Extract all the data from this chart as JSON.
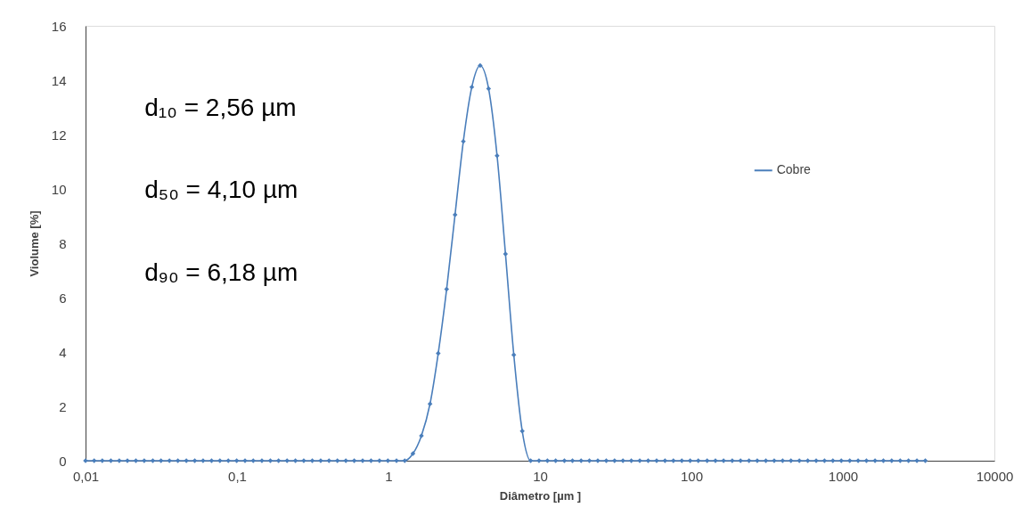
{
  "chart_data": {
    "type": "line",
    "xlabel": "Diâmetro [µm ]",
    "ylabel": "Violume  [%]",
    "x": [
      0.01,
      0.0114,
      0.0129,
      0.0147,
      0.0167,
      0.0189,
      0.0215,
      0.0244,
      0.0278,
      0.0315,
      0.0358,
      0.0407,
      0.0463,
      0.0526,
      0.0597,
      0.0679,
      0.0771,
      0.0876,
      0.0995,
      0.113,
      0.128,
      0.146,
      0.166,
      0.188,
      0.214,
      0.243,
      0.276,
      0.314,
      0.357,
      0.405,
      0.46,
      0.523,
      0.594,
      0.675,
      0.767,
      0.872,
      0.991,
      1.13,
      1.28,
      1.45,
      1.65,
      1.88,
      2.13,
      2.42,
      2.75,
      3.12,
      3.55,
      4.03,
      4.58,
      5.21,
      5.92,
      6.72,
      7.64,
      8.68,
      9.86,
      11.2,
      12.7,
      14.5,
      16.4,
      18.7,
      21.2,
      24.1,
      27.4,
      31.1,
      35.3,
      40.1,
      45.6,
      51.8,
      58.9,
      66.9,
      76,
      86.4,
      98.1,
      111,
      127,
      144,
      163,
      186,
      211,
      240,
      272,
      310,
      352,
      400,
      454,
      516,
      586,
      666,
      756,
      859,
      976,
      1110,
      1260,
      1430,
      1630,
      1850,
      2100,
      2390,
      2710,
      3080,
      3500
    ],
    "series": [
      {
        "name": "Cobre",
        "color": "#4a7ebb",
        "values": [
          0,
          0,
          0,
          0,
          0,
          0,
          0,
          0,
          0,
          0,
          0,
          0,
          0,
          0,
          0,
          0,
          0,
          0,
          0,
          0,
          0,
          0,
          0,
          0,
          0,
          0,
          0,
          0,
          0,
          0,
          0,
          0,
          0,
          0,
          0,
          0,
          0,
          0,
          0,
          0.26,
          0.92,
          2.09,
          3.95,
          6.31,
          9.05,
          11.75,
          13.75,
          14.54,
          13.69,
          11.22,
          7.61,
          3.89,
          1.09,
          0,
          0,
          0,
          0,
          0,
          0,
          0,
          0,
          0,
          0,
          0,
          0,
          0,
          0,
          0,
          0,
          0,
          0,
          0,
          0,
          0,
          0,
          0,
          0,
          0,
          0,
          0,
          0,
          0,
          0,
          0,
          0,
          0,
          0,
          0,
          0,
          0,
          0,
          0,
          0,
          0,
          0,
          0,
          0,
          0,
          0,
          0,
          0
        ]
      }
    ],
    "xlim": [
      0.01,
      10000
    ],
    "xticks": [
      {
        "value": 0.01,
        "label": "0,01"
      },
      {
        "value": 0.1,
        "label": "0,1"
      },
      1,
      10,
      100,
      1000,
      10000
    ],
    "ylim": [
      0,
      16
    ],
    "yticks": [
      0,
      2,
      4,
      6,
      8,
      10,
      12,
      14,
      16
    ],
    "log": "x",
    "grid": false,
    "legend": "top right",
    "marker": "diamond",
    "line_style": "solid",
    "annotations": [
      "d₁₀ = 2,56 µm",
      "d₅₀ = 4,10 µm",
      "d₉₀ = 6,18 µm"
    ]
  }
}
